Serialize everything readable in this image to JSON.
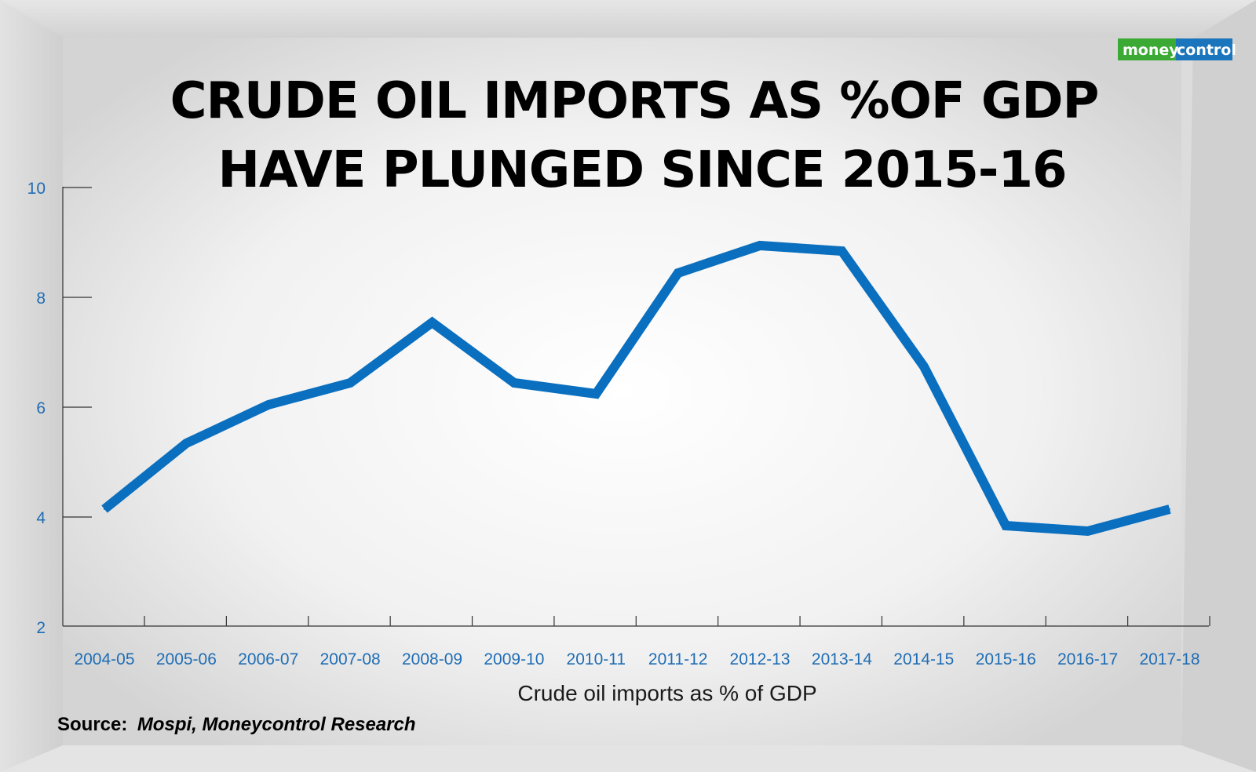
{
  "logo": {
    "part1": "money",
    "part2": "control"
  },
  "title": {
    "line1": "CRUDE OIL IMPORTS AS %OF GDP",
    "line2": "HAVE PLUNGED SINCE 2015-16"
  },
  "source": {
    "label": "Source:",
    "text": "Mospi, Moneycontrol Research"
  },
  "colors": {
    "line": "#0a6fbf",
    "ticks": "#1f6db5",
    "logo_green": "#3aaa35",
    "logo_blue": "#1b75bc"
  },
  "chart_data": {
    "type": "line",
    "title": "CRUDE OIL IMPORTS AS %OF GDP HAVE PLUNGED SINCE 2015-16",
    "xlabel": "Crude oil imports as % of GDP",
    "ylabel": "",
    "categories": [
      "2004-05",
      "2005-06",
      "2006-07",
      "2007-08",
      "2008-09",
      "2009-10",
      "2010-11",
      "2011-12",
      "2012-13",
      "2013-14",
      "2014-15",
      "2015-16",
      "2016-17",
      "2017-18"
    ],
    "series": [
      {
        "values": [
          4.2,
          5.4,
          6.1,
          6.5,
          7.6,
          6.5,
          6.3,
          8.5,
          9.0,
          8.9,
          6.8,
          3.9,
          3.8,
          4.2
        ]
      }
    ],
    "ylim": [
      2,
      10
    ],
    "yticks": [
      2,
      4,
      6,
      8,
      10
    ],
    "grid": false,
    "legend": "none"
  }
}
